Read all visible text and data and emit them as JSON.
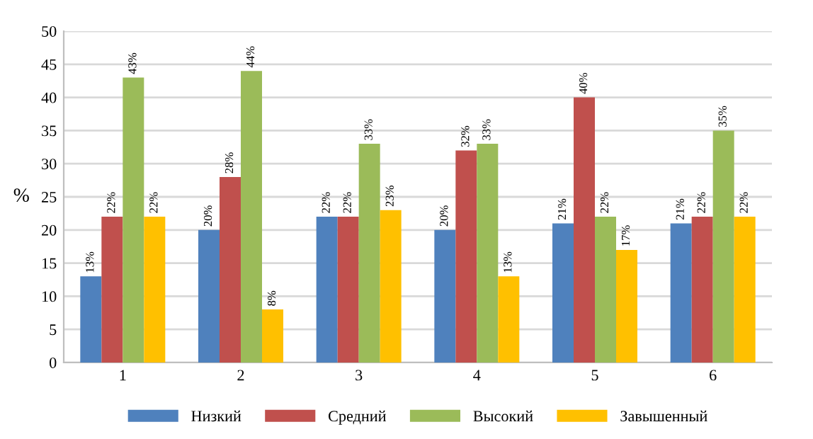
{
  "chart_data": {
    "type": "bar",
    "ylabel": "%",
    "categories": [
      "1",
      "2",
      "3",
      "4",
      "5",
      "6"
    ],
    "series": [
      {
        "name": "Низкий",
        "color": "#4f81bd",
        "values": [
          13,
          20,
          22,
          20,
          21,
          21
        ],
        "value_labels": [
          "13%",
          "20%",
          "22%",
          "20%",
          "21%",
          "21%"
        ]
      },
      {
        "name": "Средний",
        "color": "#c0504d",
        "values": [
          22,
          28,
          22,
          32,
          40,
          22
        ],
        "value_labels": [
          "22%",
          "28%",
          "22%",
          "32%",
          "40%",
          "22%"
        ]
      },
      {
        "name": "Высокий",
        "color": "#9bbb59",
        "values": [
          43,
          44,
          33,
          33,
          22,
          35
        ],
        "value_labels": [
          "43%",
          "44%",
          "33%",
          "33%",
          "22%",
          "35%"
        ]
      },
      {
        "name": "Завышенный",
        "color": "#ffc000",
        "values": [
          22,
          8,
          23,
          13,
          17,
          22
        ],
        "value_labels": [
          "22%",
          "8%",
          "23%",
          "13%",
          "17%",
          "22%"
        ]
      }
    ],
    "ylim": [
      0,
      50
    ],
    "yticks": [
      0,
      5,
      10,
      15,
      20,
      25,
      30,
      35,
      40,
      45,
      50
    ],
    "grid": "y",
    "legend": "bottom"
  }
}
